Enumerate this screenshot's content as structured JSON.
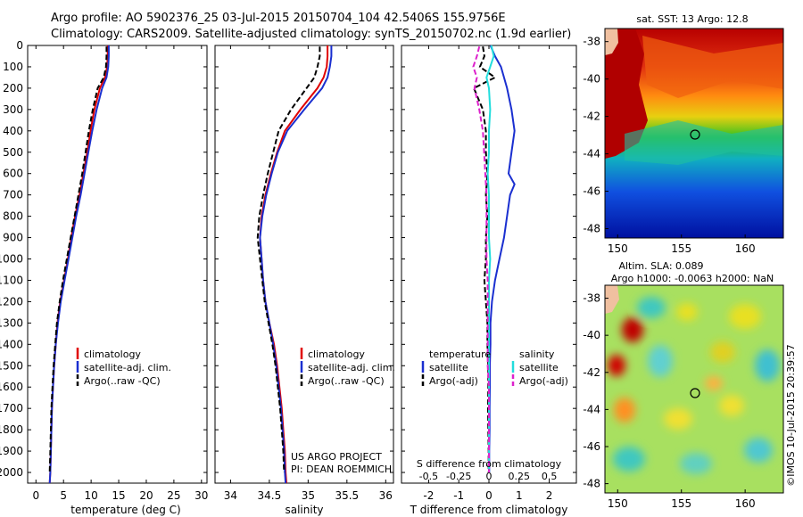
{
  "title_line1": "Argo profile: AO 5902376_25 03-Jul-2015 20150704_104 42.5406S 155.9756E",
  "title_line2": "Climatology: CARS2009. Satellite-adjusted climatology: synTS_20150702.nc (1.9d earlier)",
  "map_sst_title": "sat. SST: 13 Argo: 12.8",
  "map_sla_title1": "Altim. SLA: 0.089",
  "map_sla_title2": "Argo h1000: -0.0063 h2000: NaN",
  "map_sla_side": "©IMOS 10-Jul-2015 20:39:57",
  "project_credit1": "US ARGO PROJECT",
  "project_credit2": "PI: DEAN ROEMMICH",
  "colors": {
    "climatology": "#e00000",
    "satellite": "#1a2fd0",
    "argo": "#000000",
    "sat_s": "#22dddd",
    "argo_s": "#dd22cc"
  },
  "chart_data": [
    {
      "type": "line",
      "xlabel": "temperature (deg C)",
      "xlim": [
        -1.5,
        31
      ],
      "xticks": [
        0,
        5,
        10,
        15,
        20,
        25,
        30
      ],
      "ylim": [
        0,
        2050
      ],
      "yticks": [
        0,
        100,
        200,
        300,
        400,
        500,
        600,
        700,
        800,
        900,
        1000,
        1100,
        1200,
        1300,
        1400,
        1500,
        1600,
        1700,
        1800,
        1900,
        2000
      ],
      "legend": [
        "climatology",
        "satellite-adj. clim.",
        "Argo(..raw -QC)"
      ],
      "series": [
        {
          "name": "climatology",
          "style": "solid",
          "color": "#e00000",
          "depth": [
            0,
            50,
            100,
            150,
            200,
            300,
            400,
            500,
            600,
            700,
            800,
            900,
            1000,
            1100,
            1200,
            1300,
            1400,
            1500,
            1600,
            1700,
            1800,
            1900,
            2000,
            2050
          ],
          "values": [
            13.0,
            13.0,
            12.9,
            12.5,
            11.6,
            10.6,
            9.9,
            9.3,
            8.6,
            7.9,
            7.1,
            6.4,
            5.8,
            5.1,
            4.4,
            3.9,
            3.6,
            3.3,
            3.1,
            2.9,
            2.8,
            2.7,
            2.6,
            2.5
          ]
        },
        {
          "name": "satellite-adj. clim.",
          "style": "solid",
          "color": "#1a2fd0",
          "depth": [
            0,
            50,
            100,
            150,
            200,
            300,
            400,
            500,
            600,
            700,
            800,
            900,
            1000,
            1100,
            1200,
            1300,
            1400,
            1500,
            1600,
            1700,
            1800,
            1900,
            2000,
            2050
          ],
          "values": [
            13.2,
            13.2,
            13.1,
            12.8,
            12.0,
            11.0,
            10.2,
            9.5,
            8.8,
            8.1,
            7.3,
            6.6,
            5.9,
            5.2,
            4.5,
            4.0,
            3.6,
            3.3,
            3.1,
            2.9,
            2.8,
            2.7,
            2.6,
            2.5
          ]
        },
        {
          "name": "Argo(..raw -QC)",
          "style": "dash",
          "color": "#000000",
          "depth": [
            5,
            50,
            100,
            150,
            200,
            300,
            400,
            500,
            600,
            700,
            800,
            900,
            1000,
            1100,
            1200,
            1300,
            1400,
            1500,
            1600,
            1700,
            1800,
            1900,
            2000
          ],
          "values": [
            12.8,
            12.8,
            12.7,
            12.3,
            11.2,
            10.3,
            9.6,
            9.0,
            8.4,
            7.7,
            7.0,
            6.3,
            5.6,
            4.9,
            4.3,
            3.8,
            3.5,
            3.2,
            3.0,
            2.8,
            2.7,
            2.6,
            2.5
          ]
        }
      ]
    },
    {
      "type": "line",
      "xlabel": "salinity",
      "xlim": [
        33.8,
        36.1
      ],
      "xticks": [
        34,
        34.5,
        35,
        35.5,
        36
      ],
      "ylim": [
        0,
        2050
      ],
      "legend": [
        "climatology",
        "satellite-adj. clim.",
        "Argo(..raw -QC)"
      ],
      "series": [
        {
          "name": "climatology",
          "style": "solid",
          "color": "#e00000",
          "depth": [
            0,
            50,
            100,
            150,
            200,
            300,
            400,
            500,
            600,
            700,
            800,
            900,
            1000,
            1100,
            1200,
            1300,
            1400,
            1500,
            1600,
            1700,
            1800,
            1900,
            2000,
            2050
          ],
          "values": [
            35.25,
            35.25,
            35.24,
            35.2,
            35.12,
            34.9,
            34.7,
            34.6,
            34.52,
            34.45,
            34.4,
            34.38,
            34.4,
            34.42,
            34.45,
            34.5,
            34.56,
            34.6,
            34.63,
            34.66,
            34.68,
            34.7,
            34.71,
            34.72
          ]
        },
        {
          "name": "satellite-adj. clim.",
          "style": "solid",
          "color": "#1a2fd0",
          "depth": [
            0,
            50,
            100,
            150,
            200,
            300,
            400,
            500,
            600,
            700,
            800,
            900,
            1000,
            1100,
            1200,
            1300,
            1400,
            1500,
            1600,
            1700,
            1800,
            1900,
            2000,
            2050
          ],
          "values": [
            35.3,
            35.3,
            35.28,
            35.25,
            35.18,
            34.95,
            34.73,
            34.61,
            34.53,
            34.46,
            34.41,
            34.38,
            34.4,
            34.42,
            34.45,
            34.5,
            34.55,
            34.59,
            34.62,
            34.65,
            34.67,
            34.69,
            34.7,
            34.71
          ]
        },
        {
          "name": "Argo(..raw -QC)",
          "style": "dash",
          "color": "#000000",
          "depth": [
            5,
            50,
            100,
            150,
            200,
            300,
            400,
            500,
            600,
            700,
            800,
            900,
            1000,
            1100,
            1200,
            1300,
            1400,
            1500,
            1600,
            1700,
            1800,
            1900,
            2000
          ],
          "values": [
            35.15,
            35.15,
            35.12,
            35.08,
            34.98,
            34.78,
            34.62,
            34.55,
            34.48,
            34.42,
            34.37,
            34.35,
            34.38,
            34.41,
            34.44,
            34.49,
            34.54,
            34.58,
            34.61,
            34.64,
            34.66,
            34.68,
            34.69
          ]
        }
      ]
    },
    {
      "type": "line",
      "xlabel": "T difference from climatology",
      "xlabel_top": "S difference from climatology",
      "xlim": [
        -2.9,
        2.9
      ],
      "xticks": [
        -2,
        -1,
        0,
        1,
        2
      ],
      "xticks_top": [
        "-0.5",
        "-0.25",
        "0",
        "0.25",
        "0.5"
      ],
      "ylim": [
        0,
        2050
      ],
      "legend_left_title": "temperature",
      "legend_right_title": "salinity",
      "legend_left": [
        "satellite",
        "Argo(-adj)"
      ],
      "legend_right": [
        "satellite",
        "Argo(-adj)"
      ],
      "series": [
        {
          "name": "T satellite",
          "style": "solid",
          "color": "#1a2fd0",
          "depth": [
            0,
            50,
            100,
            150,
            200,
            300,
            400,
            500,
            600,
            650,
            700,
            800,
            900,
            1000,
            1100,
            1200,
            1300,
            1400,
            1500,
            1600,
            1700,
            1800,
            1900,
            2000
          ],
          "values": [
            0.05,
            0.2,
            0.4,
            0.5,
            0.6,
            0.75,
            0.85,
            0.75,
            0.65,
            0.85,
            0.7,
            0.6,
            0.5,
            0.35,
            0.2,
            0.1,
            0.05,
            0.05,
            0.03,
            0.03,
            0.02,
            0.02,
            0.01,
            0.01
          ]
        },
        {
          "name": "T Argo(-adj)",
          "style": "dash",
          "color": "#000000",
          "depth": [
            5,
            50,
            100,
            150,
            200,
            300,
            400,
            500,
            600,
            700,
            800,
            900,
            1000,
            1100,
            1200,
            1300,
            1400,
            1500,
            1600,
            1700,
            1800,
            1900,
            2000
          ],
          "values": [
            -0.2,
            -0.15,
            -0.3,
            0.2,
            -0.5,
            -0.2,
            -0.1,
            -0.1,
            -0.05,
            -0.1,
            -0.05,
            -0.1,
            -0.1,
            -0.15,
            -0.1,
            -0.05,
            -0.05,
            -0.02,
            -0.02,
            -0.03,
            -0.02,
            -0.01,
            -0.01
          ]
        },
        {
          "name": "S satellite",
          "style": "solid",
          "color": "#22dddd",
          "depth": [
            0,
            50,
            100,
            150,
            200,
            300,
            400,
            500,
            600,
            700,
            800,
            900,
            1000,
            1100,
            1200,
            1300,
            1400,
            1500,
            1600,
            1700,
            1800,
            1900,
            2000
          ],
          "values": [
            0.02,
            0.04,
            0.01,
            -0.02,
            0.0,
            0.01,
            0.0,
            0.0,
            -0.01,
            0.0,
            0.0,
            0.0,
            0.01,
            0.0,
            0.0,
            0.0,
            0.0,
            0.0,
            0.0,
            0.0,
            0.0,
            0.0,
            0.0
          ]
        },
        {
          "name": "S Argo(-adj)",
          "style": "dash",
          "color": "#dd22cc",
          "depth": [
            5,
            50,
            100,
            150,
            200,
            300,
            400,
            500,
            600,
            700,
            800,
            900,
            1000,
            1100,
            1200,
            1300,
            1400,
            1500,
            1600,
            1700,
            1800,
            1900,
            2000
          ],
          "values": [
            -0.08,
            -0.1,
            -0.13,
            -0.1,
            -0.12,
            -0.08,
            -0.05,
            -0.04,
            -0.03,
            -0.02,
            -0.02,
            -0.02,
            -0.02,
            -0.01,
            -0.01,
            -0.01,
            -0.01,
            -0.01,
            0.0,
            0.0,
            0.0,
            0.0,
            0.0
          ]
        }
      ]
    },
    {
      "type": "heatmap",
      "title": "sat. SST: 13 Argo: 12.8",
      "xticks": [
        150,
        155,
        160
      ],
      "yticks": [
        -38,
        -40,
        -42,
        -44,
        -46,
        -48
      ],
      "xlim": [
        149,
        163
      ],
      "ylim": [
        -48.5,
        -37.3
      ],
      "argo_position": {
        "lon": 155.98,
        "lat": -42.54
      }
    },
    {
      "type": "heatmap",
      "title": "Altim. SLA: 0.089",
      "xticks": [
        150,
        155,
        160
      ],
      "yticks": [
        -38,
        -40,
        -42,
        -44,
        -46,
        -48
      ],
      "xlim": [
        149,
        163
      ],
      "ylim": [
        -48.5,
        -37.3
      ],
      "argo_position": {
        "lon": 155.98,
        "lat": -42.54
      }
    }
  ]
}
